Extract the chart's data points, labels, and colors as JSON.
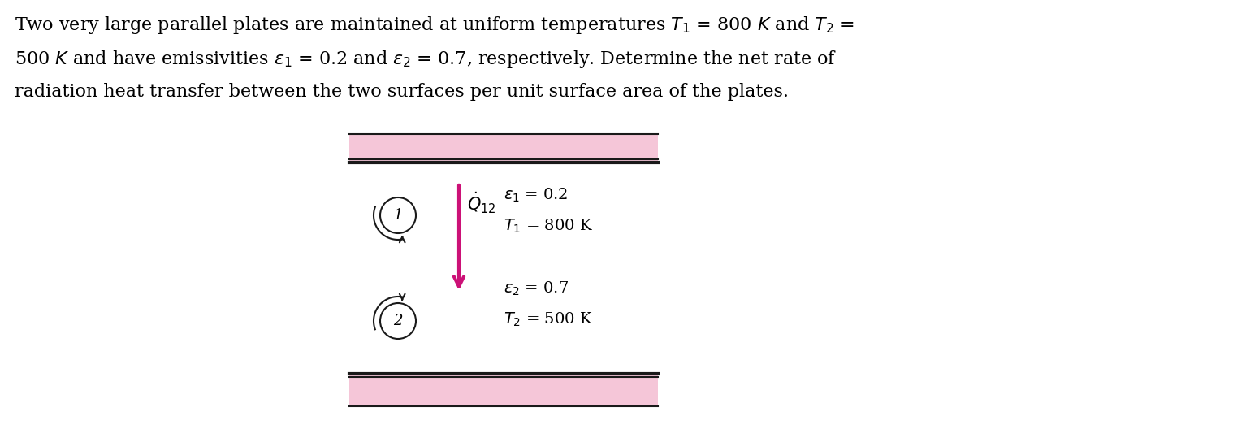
{
  "background_color": "#ffffff",
  "text_color": "#000000",
  "plate_color": "#f5c6d8",
  "plate_dark_line": "#1a1a1a",
  "arrow_color": "#cc1177",
  "title_lines": [
    "Two very large parallel plates are maintained at uniform temperatures $T_1$ = 800 $K$ and $T_2$ =",
    "500 $K$ and have emissivities $\\varepsilon_1$ = 0.2 and $\\varepsilon_2$ = 0.7, respectively. Determine the net rate of",
    "radiation heat transfer between the two surfaces per unit surface area of the plates."
  ],
  "label1_eps": "$\\varepsilon_1$ = 0.2",
  "label1_T": "$T_1$ = 800 K",
  "label2_eps": "$\\varepsilon_2$ = 0.7",
  "label2_T": "$T_2$ = 500 K",
  "q_label": "$\\dot{Q}_{12}$",
  "circle1_label": "1",
  "circle2_label": "2",
  "figsize": [
    15.34,
    5.44
  ],
  "dpi": 100,
  "title_fontsize": 16,
  "label_fontsize": 14,
  "circle_fontsize": 13
}
